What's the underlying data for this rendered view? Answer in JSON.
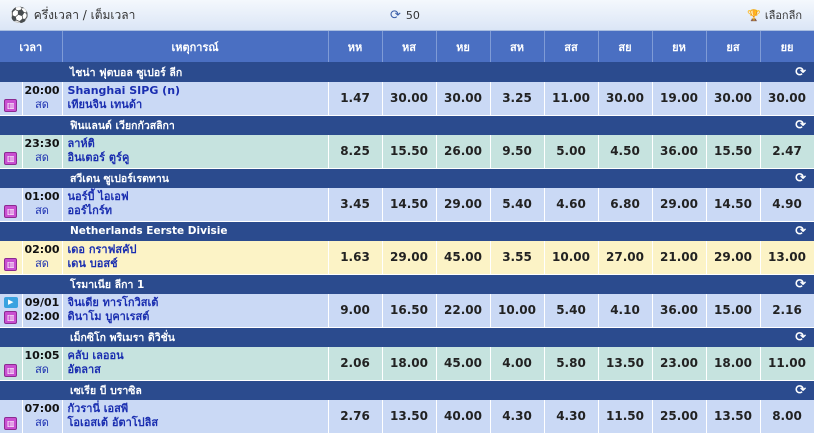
{
  "topbar": {
    "title": "ครึ่งเวลา / เต็มเวลา",
    "refresh_count": "50",
    "league_select": "เลือกลีก"
  },
  "columns": [
    "เวลา",
    "เหตุการณ์",
    "หห",
    "หส",
    "หย",
    "สห",
    "สส",
    "สย",
    "ยห",
    "ยส",
    "ยย"
  ],
  "colors": {
    "header": "#4a6fc2",
    "league_row": "#2b4b8e",
    "row_blue": "#cad9f5",
    "row_teal": "#c6e3df",
    "row_yellow": "#fcf3c6",
    "team_text": "#1a2eb0"
  },
  "leagues": [
    {
      "name": "ไชน่า ฟุตบอล ซูเปอร์ ลีก",
      "match": {
        "time1": "20:00",
        "time2": "สด",
        "home": "Shanghai SIPG (n)",
        "away": "เทียนจิน เทนด้า",
        "tv": false,
        "odds": [
          "1.47",
          "30.00",
          "30.00",
          "3.25",
          "11.00",
          "30.00",
          "19.00",
          "30.00",
          "30.00"
        ]
      }
    },
    {
      "name": "ฟินแลนด์ เวียกกัวสลิกา",
      "match": {
        "time1": "23:30",
        "time2": "สด",
        "home": "ลาห์ติ",
        "away": "อินเตอร์ ตูร์คู",
        "tv": false,
        "odds": [
          "8.25",
          "15.50",
          "26.00",
          "9.50",
          "5.00",
          "4.50",
          "36.00",
          "15.50",
          "2.47"
        ]
      }
    },
    {
      "name": "สวีเดน ซูเปอร์เรตทาน",
      "match": {
        "time1": "01:00",
        "time2": "สด",
        "home": "นอร์บี้ ไอเอฟ",
        "away": "ออร์ไกร์ท",
        "tv": false,
        "odds": [
          "3.45",
          "14.50",
          "29.00",
          "5.40",
          "4.60",
          "6.80",
          "29.00",
          "14.50",
          "4.90"
        ]
      }
    },
    {
      "name": "Netherlands Eerste Divisie",
      "match": {
        "time1": "02:00",
        "time2": "สด",
        "home": "เดอ กราฟสคัป",
        "away": "เดน บอสช์",
        "tv": false,
        "odds": [
          "1.63",
          "29.00",
          "45.00",
          "3.55",
          "10.00",
          "27.00",
          "21.00",
          "29.00",
          "13.00"
        ]
      }
    },
    {
      "name": "โรมาเนีย ลีกา 1",
      "match": {
        "time1": "09/01",
        "time2": "02:00",
        "home": "จินเดีย ทารโกวิสเต้",
        "away": "ดินาโม บูคาเรสต์",
        "tv": true,
        "odds": [
          "9.00",
          "16.50",
          "22.00",
          "10.00",
          "5.40",
          "4.10",
          "36.00",
          "15.00",
          "2.16"
        ]
      }
    },
    {
      "name": "เม็กซิโก พริเมรา ดิวิชั่น",
      "match": {
        "time1": "10:05",
        "time2": "สด",
        "home": "คลับ เลออน",
        "away": "อัตลาส",
        "tv": false,
        "odds": [
          "2.06",
          "18.00",
          "45.00",
          "4.00",
          "5.80",
          "13.50",
          "23.00",
          "18.00",
          "11.00"
        ]
      }
    },
    {
      "name": "เซเรีย บี บราซิล",
      "match": {
        "time1": "07:00",
        "time2": "สด",
        "home": "กัวรานี่ เอสพี",
        "away": "โอเอสเต้ อัตาโปลิส",
        "tv": false,
        "odds": [
          "2.76",
          "13.50",
          "40.00",
          "4.30",
          "4.30",
          "11.50",
          "25.00",
          "13.50",
          "8.00"
        ]
      }
    }
  ]
}
